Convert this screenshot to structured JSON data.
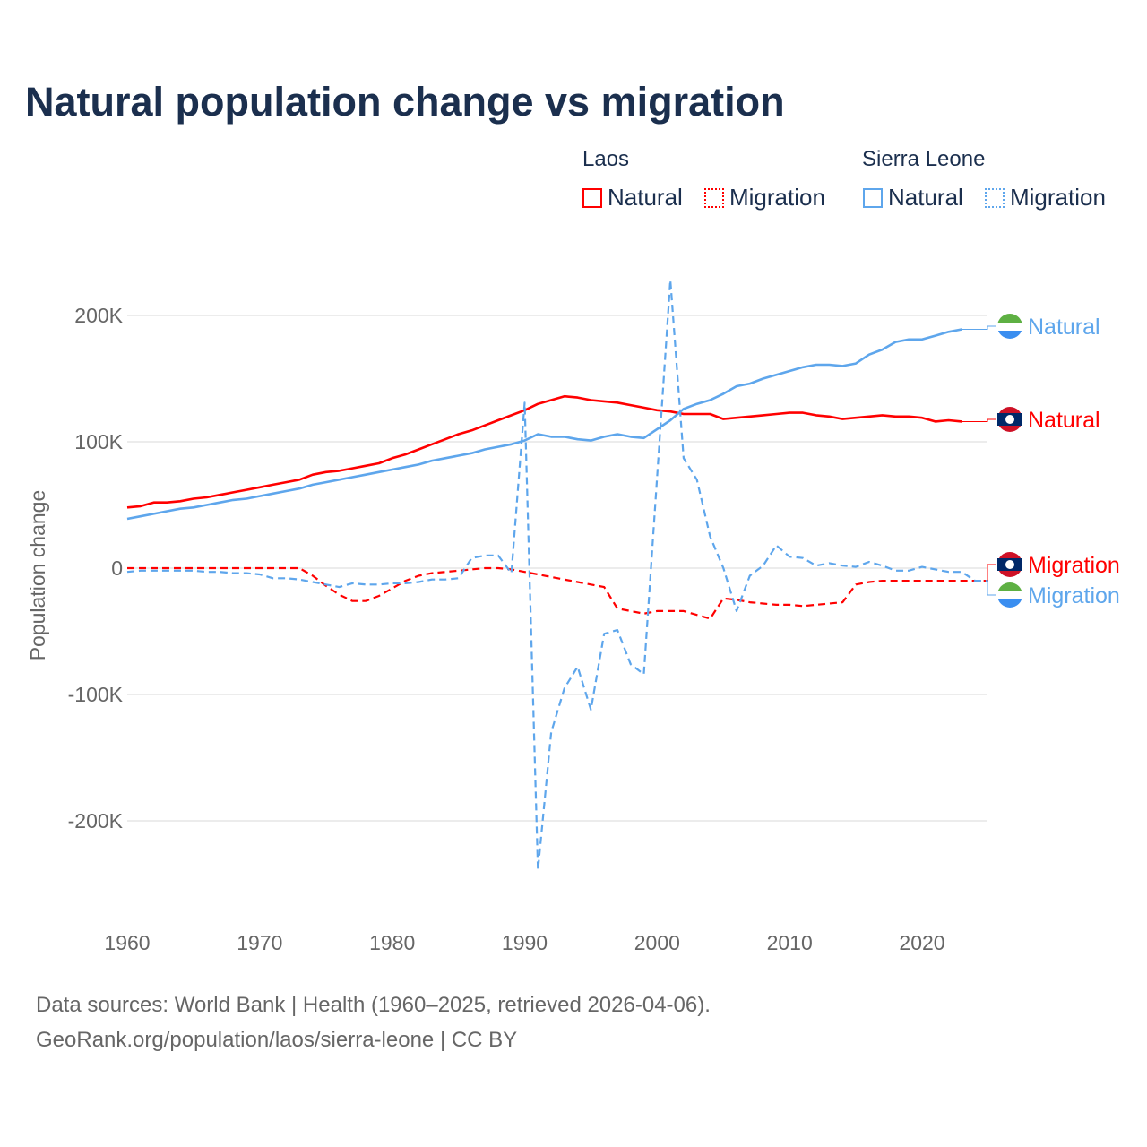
{
  "chart_data": {
    "type": "line",
    "title": "Natural population change vs migration",
    "xlabel": "",
    "ylabel": "Population change",
    "xlim": [
      1960,
      2025
    ],
    "ylim": [
      -250000,
      240000
    ],
    "x_ticks": [
      "1960",
      "1970",
      "1980",
      "1990",
      "2000",
      "2010",
      "2020"
    ],
    "y_ticks": [
      {
        "v": 200000,
        "label": "200K"
      },
      {
        "v": 100000,
        "label": "100K"
      },
      {
        "v": 0,
        "label": "0"
      },
      {
        "v": -100000,
        "label": "-100K"
      },
      {
        "v": -200000,
        "label": "-200K"
      }
    ],
    "grid": true,
    "legend": {
      "placement": "top-right",
      "groups": [
        {
          "name": "Laos",
          "items": [
            "Natural",
            "Migration"
          ]
        },
        {
          "name": "Sierra Leone",
          "items": [
            "Natural",
            "Migration"
          ]
        }
      ]
    },
    "series": [
      {
        "name": "Laos Natural",
        "country": "Laos",
        "kind": "Natural",
        "color": "#ff0000",
        "dashed": false,
        "start": 1960,
        "end_label": "Natural",
        "values_k": [
          48,
          49,
          52,
          52,
          53,
          55,
          56,
          58,
          60,
          62,
          64,
          66,
          68,
          70,
          74,
          76,
          77,
          79,
          81,
          83,
          87,
          90,
          94,
          98,
          102,
          106,
          109,
          113,
          117,
          121,
          125,
          130,
          133,
          136,
          135,
          133,
          132,
          131,
          129,
          127,
          125,
          124,
          122,
          122,
          122,
          118,
          119,
          120,
          121,
          122,
          123,
          123,
          121,
          120,
          118,
          119,
          120,
          121,
          120,
          120,
          119,
          116,
          117,
          116
        ]
      },
      {
        "name": "Laos Migration",
        "country": "Laos",
        "kind": "Migration",
        "color": "#ff0000",
        "dashed": true,
        "start": 1960,
        "end_label": "Migration",
        "values_k": [
          0,
          0,
          0,
          0,
          0,
          0,
          0,
          0,
          0,
          0,
          0,
          0,
          0,
          0,
          -6,
          -14,
          -21,
          -26,
          -26,
          -22,
          -16,
          -10,
          -6,
          -4,
          -3,
          -2,
          -1,
          0,
          0,
          -1,
          -3,
          -5,
          -7,
          -9,
          -11,
          -13,
          -15,
          -32,
          -34,
          -36,
          -34,
          -34,
          -34,
          -37,
          -40,
          -24,
          -25,
          -27,
          -28,
          -29,
          -29,
          -30,
          -29,
          -28,
          -27,
          -13,
          -11,
          -10,
          -10,
          -10,
          -10,
          -10,
          -10,
          -10,
          -10,
          -10
        ]
      },
      {
        "name": "Sierra Leone Natural",
        "country": "Sierra Leone",
        "kind": "Natural",
        "color": "#5ea6ec",
        "dashed": false,
        "start": 1960,
        "end_label": "Natural",
        "values_k": [
          39,
          41,
          43,
          45,
          47,
          48,
          50,
          52,
          54,
          55,
          57,
          59,
          61,
          63,
          66,
          68,
          70,
          72,
          74,
          76,
          78,
          80,
          82,
          85,
          87,
          89,
          91,
          94,
          96,
          98,
          101,
          106,
          104,
          104,
          102,
          101,
          104,
          106,
          104,
          103,
          110,
          117,
          126,
          130,
          133,
          138,
          144,
          146,
          150,
          153,
          156,
          159,
          161,
          161,
          160,
          162,
          169,
          173,
          179,
          181,
          181,
          184,
          187,
          189
        ]
      },
      {
        "name": "Sierra Leone Migration",
        "country": "Sierra Leone",
        "kind": "Migration",
        "color": "#5ea6ec",
        "dashed": true,
        "start": 1960,
        "end_label": "Migration",
        "values_k": [
          -3,
          -2,
          -2,
          -2,
          -2,
          -2,
          -3,
          -3,
          -4,
          -4,
          -5,
          -8,
          -8,
          -9,
          -11,
          -13,
          -15,
          -12,
          -13,
          -13,
          -12,
          -12,
          -11,
          -9,
          -9,
          -8,
          8,
          10,
          10,
          -4,
          131,
          -239,
          -130,
          -95,
          -78,
          -112,
          -52,
          -49,
          -76,
          -84,
          72,
          228,
          87,
          70,
          25,
          0,
          -34,
          -6,
          2,
          18,
          9,
          8,
          2,
          4,
          2,
          1,
          5,
          2,
          -2,
          -2,
          1,
          -1,
          -3,
          -3,
          -10,
          -10
        ]
      }
    ]
  },
  "legend_titles": {
    "laos": "Laos",
    "sierra_leone": "Sierra Leone"
  },
  "legend_labels": {
    "natural": "Natural",
    "migration": "Migration"
  },
  "footer": {
    "line1": "Data sources: World Bank | Health (1960–2025, retrieved 2026-04-06).",
    "line2": "GeoRank.org/population/laos/sierra-leone | CC BY"
  }
}
